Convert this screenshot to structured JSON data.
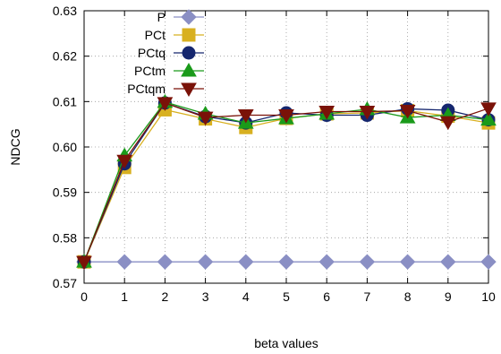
{
  "chart_data": {
    "type": "line",
    "title": "",
    "xlabel": "beta values",
    "ylabel": "NDCG",
    "x": [
      0,
      1,
      2,
      3,
      4,
      5,
      6,
      7,
      8,
      9,
      10
    ],
    "xlim": [
      0,
      10
    ],
    "ylim": [
      0.57,
      0.63
    ],
    "xticks": [
      "0",
      "1",
      "2",
      "3",
      "4",
      "5",
      "6",
      "7",
      "8",
      "9",
      "10"
    ],
    "yticks": [
      "0.57",
      "0.58",
      "0.59",
      "0.60",
      "0.61",
      "0.62",
      "0.63"
    ],
    "grid": true,
    "legend_position": "top-left",
    "series": [
      {
        "name": "P",
        "color": "#8a8fc4",
        "marker": "diamond",
        "values": [
          0.5747,
          0.5747,
          0.5747,
          0.5747,
          0.5747,
          0.5747,
          0.5747,
          0.5747,
          0.5747,
          0.5747,
          0.5747
        ]
      },
      {
        "name": "PCt",
        "color": "#d8b020",
        "marker": "square",
        "values": [
          0.5747,
          0.5955,
          0.6082,
          0.6062,
          0.6043,
          0.6063,
          0.6073,
          0.6075,
          0.608,
          0.6068,
          0.6053
        ]
      },
      {
        "name": "PCtq",
        "color": "#15266e",
        "marker": "circle",
        "values": [
          0.5747,
          0.5963,
          0.6097,
          0.6067,
          0.6053,
          0.6075,
          0.607,
          0.607,
          0.6084,
          0.6081,
          0.606
        ]
      },
      {
        "name": "PCtm",
        "color": "#1a9a1a",
        "marker": "triangle-up",
        "values": [
          0.5747,
          0.5981,
          0.6099,
          0.6073,
          0.6053,
          0.6063,
          0.6073,
          0.6083,
          0.6065,
          0.607,
          0.606
        ]
      },
      {
        "name": "PCtqm",
        "color": "#7a1208",
        "marker": "triangle-down",
        "values": [
          0.5747,
          0.597,
          0.6097,
          0.6065,
          0.607,
          0.607,
          0.6078,
          0.6078,
          0.608,
          0.6055,
          0.6085
        ]
      }
    ]
  }
}
